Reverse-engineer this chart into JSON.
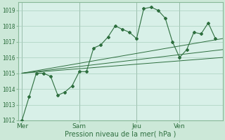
{
  "background_color": "#cce8d8",
  "plot_bg_color": "#d8f0e8",
  "grid_color": "#aacfbe",
  "line_color": "#2d6e3e",
  "xlabel": "Pression niveau de la mer( hPa )",
  "ylim": [
    1012,
    1019.5
  ],
  "yticks": [
    1012,
    1013,
    1014,
    1015,
    1016,
    1017,
    1018,
    1019
  ],
  "day_labels": [
    "Mer",
    "Sam",
    "Jeu",
    "Ven"
  ],
  "day_positions": [
    0,
    8,
    16,
    22
  ],
  "vline_color": "#7a9a88",
  "series1_x": [
    0,
    1,
    2,
    3,
    4,
    5,
    6,
    7,
    8,
    9,
    10,
    11,
    12,
    13,
    14,
    15,
    16,
    17,
    18,
    19,
    20,
    21,
    22,
    23,
    24,
    25,
    26,
    27
  ],
  "series1_y": [
    1012.0,
    1013.5,
    1015.0,
    1015.0,
    1014.8,
    1013.6,
    1013.8,
    1014.2,
    1015.1,
    1015.1,
    1016.6,
    1016.8,
    1017.3,
    1018.0,
    1017.8,
    1017.6,
    1017.2,
    1019.1,
    1019.2,
    1019.0,
    1018.5,
    1017.0,
    1016.0,
    1016.5,
    1017.6,
    1017.5,
    1018.2,
    1017.2
  ],
  "series2_x": [
    0,
    28
  ],
  "series2_y": [
    1015.0,
    1017.2
  ],
  "series3_x": [
    0,
    28
  ],
  "series3_y": [
    1015.0,
    1016.5
  ],
  "series4_x": [
    0,
    28
  ],
  "series4_y": [
    1015.0,
    1016.0
  ],
  "xlim": [
    -0.5,
    28
  ]
}
